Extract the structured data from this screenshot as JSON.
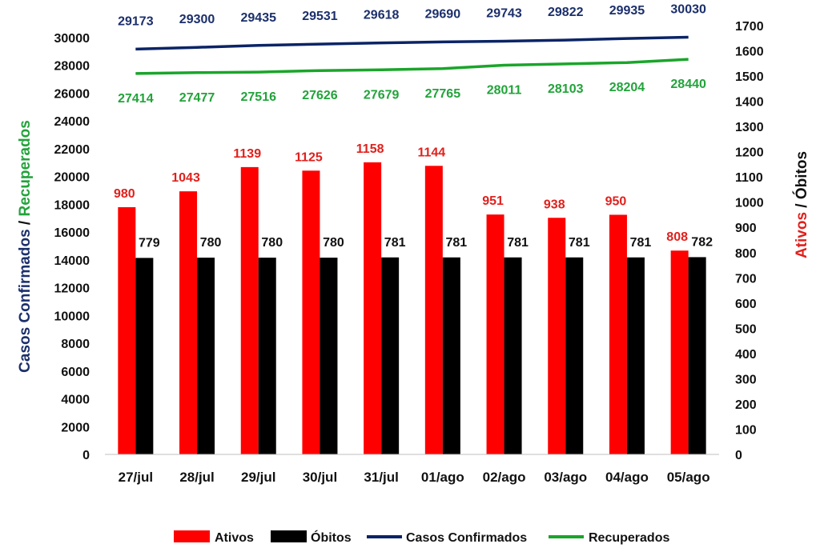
{
  "chart_data": {
    "type": "bar+line",
    "categories": [
      "27/jul",
      "28/jul",
      "29/jul",
      "30/jul",
      "31/jul",
      "01/ago",
      "02/ago",
      "03/ago",
      "04/ago",
      "05/ago"
    ],
    "series": [
      {
        "name": "Ativos",
        "type": "bar",
        "axis": "right",
        "color": "#ff0000",
        "label_color": "#e0201c",
        "values": [
          980,
          1043,
          1139,
          1125,
          1158,
          1144,
          951,
          938,
          950,
          808
        ]
      },
      {
        "name": "Óbitos",
        "type": "bar",
        "axis": "right",
        "color": "#000000",
        "label_color": "#111111",
        "values": [
          779,
          780,
          780,
          780,
          781,
          781,
          781,
          781,
          781,
          782
        ]
      },
      {
        "name": "Casos Confirmados",
        "type": "line",
        "axis": "left",
        "color": "#0b2466",
        "label_color": "#1b2f6b",
        "values": [
          29173,
          29300,
          29435,
          29531,
          29618,
          29690,
          29743,
          29822,
          29935,
          30030
        ]
      },
      {
        "name": "Recuperados",
        "type": "line",
        "axis": "left",
        "color": "#1aa52a",
        "label_color": "#22a33a",
        "values": [
          27414,
          27477,
          27516,
          27626,
          27679,
          27765,
          28011,
          28103,
          28204,
          28440
        ]
      }
    ],
    "y_left": {
      "min": 0,
      "max": 30000,
      "step": 2000,
      "title_parts": [
        {
          "text": "Casos Confirmados",
          "color": "#1b2f6b"
        },
        {
          "text": " / ",
          "color": "#111111"
        },
        {
          "text": "Recuperados",
          "color": "#22a33a"
        }
      ]
    },
    "y_right": {
      "min": 0,
      "max": 1700,
      "step": 100,
      "title_parts": [
        {
          "text": "Ativos",
          "color": "#e0201c"
        },
        {
          "text": " / ",
          "color": "#111111"
        },
        {
          "text": "Óbitos",
          "color": "#111111"
        }
      ]
    },
    "legend": {
      "position": "bottom"
    },
    "grid": false
  }
}
